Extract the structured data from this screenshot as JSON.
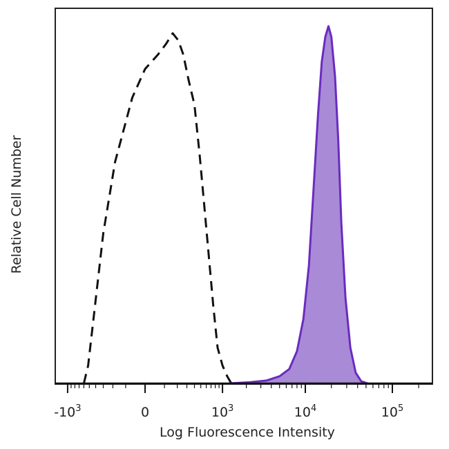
{
  "chart_data": {
    "type": "area",
    "title": "",
    "xlabel": "Log Fluorescence Intensity",
    "ylabel": "Relative Cell Number",
    "x_scale": "biexponential",
    "xlim": [
      -3000,
      200000
    ],
    "ylim": [
      0,
      1.05
    ],
    "grid": false,
    "legend": "none",
    "x_ticks": [
      {
        "value": -1000,
        "base": "-10",
        "exp": "3"
      },
      {
        "value": 0,
        "base": "0",
        "exp": ""
      },
      {
        "value": 1000,
        "base": "10",
        "exp": "3"
      },
      {
        "value": 10000,
        "base": "10",
        "exp": "4"
      },
      {
        "value": 100000,
        "base": "10",
        "exp": "5"
      }
    ],
    "series": [
      {
        "style": "dashed-outline",
        "color": "#111111",
        "x": [
          -600,
          -520,
          -420,
          -300,
          -180,
          -60,
          0,
          60,
          110,
          160,
          210,
          260,
          320,
          400,
          480,
          560,
          650,
          750,
          860,
          1000,
          1150,
          1300
        ],
        "y": [
          0.0,
          0.05,
          0.2,
          0.42,
          0.62,
          0.8,
          0.88,
          0.92,
          0.95,
          0.98,
          0.96,
          0.92,
          0.85,
          0.78,
          0.64,
          0.5,
          0.36,
          0.22,
          0.1,
          0.05,
          0.02,
          0.0
        ]
      },
      {
        "style": "filled",
        "color": "#6a2bbf",
        "fill": "#a98ad6",
        "x": [
          1200,
          2200,
          3500,
          5000,
          6500,
          8000,
          9500,
          11000,
          12500,
          14000,
          15500,
          17000,
          18500,
          20000,
          22000,
          24000,
          26000,
          29000,
          33000,
          38000,
          44000,
          52000
        ],
        "y": [
          0.0,
          0.003,
          0.008,
          0.02,
          0.04,
          0.09,
          0.18,
          0.33,
          0.55,
          0.75,
          0.9,
          0.97,
          1.0,
          0.97,
          0.86,
          0.68,
          0.45,
          0.24,
          0.1,
          0.03,
          0.006,
          0.0
        ]
      }
    ]
  }
}
